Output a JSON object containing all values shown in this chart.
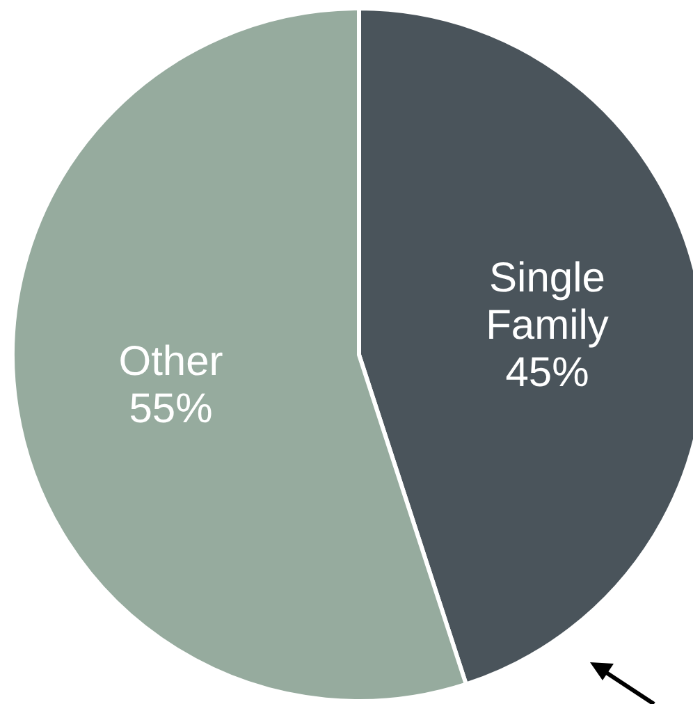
{
  "chart_data": {
    "type": "pie",
    "categories": [
      "Single Family",
      "Other"
    ],
    "values": [
      45,
      55
    ],
    "colors": [
      "#4a545b",
      "#96ab9e"
    ],
    "value_labels": [
      "45%",
      "55%"
    ]
  }
}
